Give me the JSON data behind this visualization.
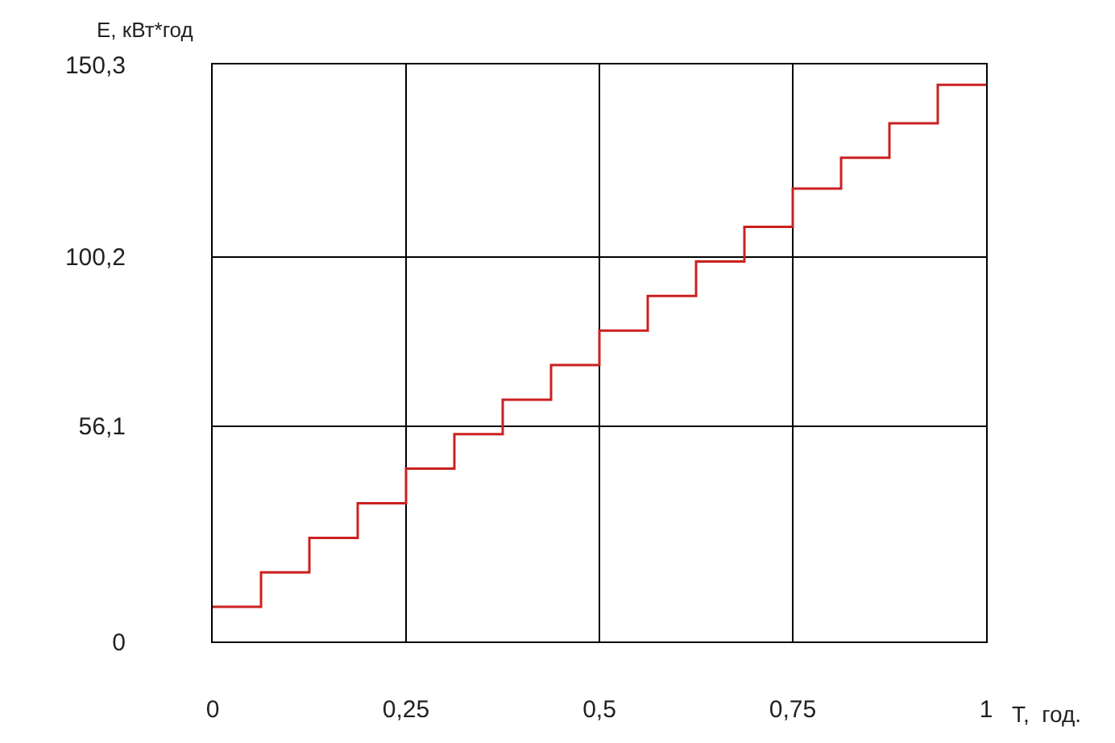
{
  "chart_data": {
    "type": "step",
    "xlabel": "T,  год.",
    "ylabel": "E, кВт*год",
    "x": [
      0,
      0.0625,
      0.125,
      0.1875,
      0.25,
      0.3125,
      0.375,
      0.4375,
      0.5,
      0.5625,
      0.625,
      0.6875,
      0.75,
      0.8125,
      0.875,
      0.9375,
      1
    ],
    "series": [
      {
        "color": "#cc2020",
        "values": [
          9,
          18,
          27,
          36,
          45,
          54,
          63,
          72,
          81,
          90,
          99,
          108,
          118,
          126,
          135,
          145,
          145
        ]
      }
    ],
    "xlim": [
      0,
      1
    ],
    "ylim": [
      0,
      150.3
    ],
    "xticks": [
      0,
      {
        "value": 0.25,
        "label": "0,25"
      },
      {
        "value": 0.5,
        "label": "0,5"
      },
      {
        "value": 0.75,
        "label": "0,75"
      },
      1
    ],
    "yticks": [
      0,
      {
        "value": 56.1,
        "label": "56,1"
      },
      {
        "value": 100.2,
        "label": "100,2"
      },
      {
        "value": 150.3,
        "label": "150,3"
      }
    ],
    "grid": true,
    "line_style": "solid",
    "marker": "none"
  }
}
